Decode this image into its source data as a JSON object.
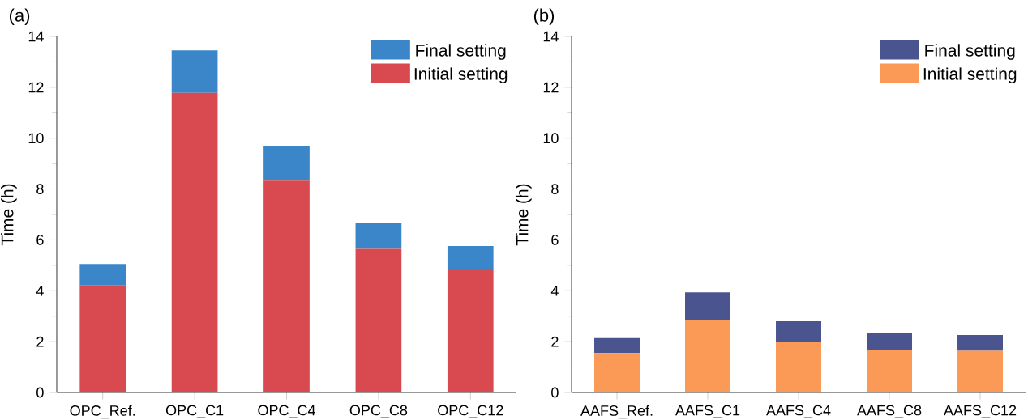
{
  "chart_data": [
    {
      "type": "bar",
      "stacked": true,
      "annotations": [
        "(a)"
      ],
      "ylabel": "Time (h)",
      "categories": [
        "OPC_Ref.",
        "OPC_C1",
        "OPC_C4",
        "OPC_C8",
        "OPC_C12"
      ],
      "series": [
        {
          "name": "Initial setting",
          "color": "#d84a4f",
          "values": [
            4.22,
            11.78,
            8.33,
            5.65,
            4.85
          ]
        },
        {
          "name": "Final setting",
          "color": "#3a86c8",
          "values": [
            0.83,
            1.67,
            1.34,
            1.0,
            0.91
          ]
        }
      ],
      "ylim": [
        0,
        14
      ],
      "yticks": [
        0,
        2,
        4,
        6,
        8,
        10,
        12,
        14
      ],
      "legend": "top right",
      "grid": false
    },
    {
      "type": "bar",
      "stacked": true,
      "annotations": [
        "(b)"
      ],
      "ylabel": "Time (h)",
      "categories": [
        "AAFS_Ref.",
        "AAFS_C1",
        "AAFS_C4",
        "AAFS_C8",
        "AAFS_C12"
      ],
      "series": [
        {
          "name": "Initial setting",
          "color": "#fb9a56",
          "values": [
            1.55,
            2.85,
            1.97,
            1.69,
            1.64
          ]
        },
        {
          "name": "Final setting",
          "color": "#4a5590",
          "values": [
            0.59,
            1.09,
            0.83,
            0.65,
            0.62
          ]
        }
      ],
      "ylim": [
        0,
        14
      ],
      "yticks": [
        0,
        2,
        4,
        6,
        8,
        10,
        12,
        14
      ],
      "legend": "top right",
      "grid": false
    }
  ]
}
